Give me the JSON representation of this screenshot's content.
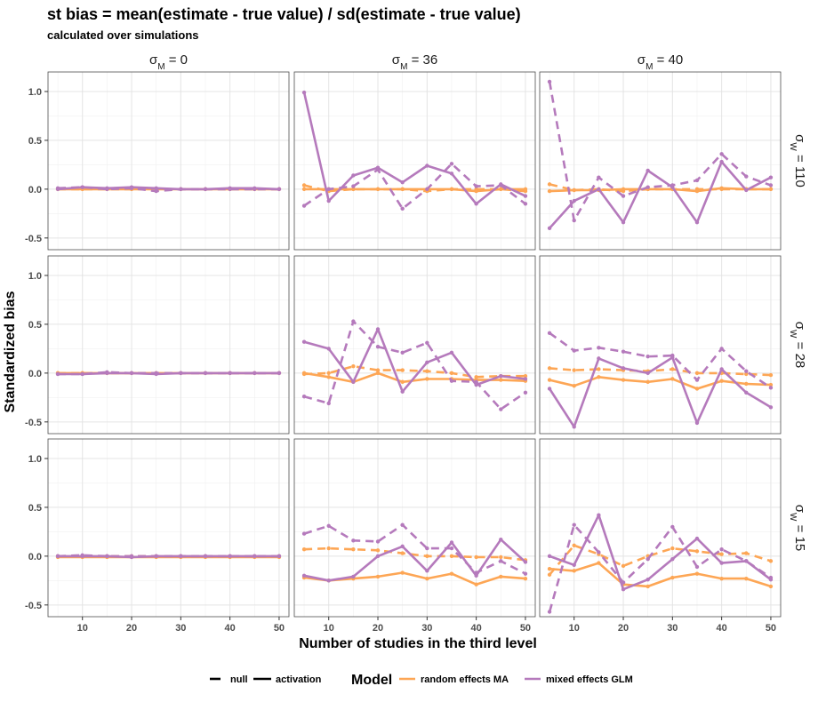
{
  "title": "st bias = mean(estimate - true value) / sd(estimate - true value)",
  "subtitle": "calculated over simulations",
  "chart_data": {
    "type": "line",
    "facet_columns": [
      {
        "prefix": "σ",
        "sub": "M",
        "suffix": " = 0"
      },
      {
        "prefix": "σ",
        "sub": "M",
        "suffix": " = 36"
      },
      {
        "prefix": "σ",
        "sub": "M",
        "suffix": " = 40"
      }
    ],
    "facet_rows": [
      {
        "prefix": "σ",
        "sub": "W",
        "suffix": " = 110"
      },
      {
        "prefix": "σ",
        "sub": "W",
        "suffix": " = 28"
      },
      {
        "prefix": "σ",
        "sub": "W",
        "suffix": " = 15"
      }
    ],
    "xlabel": "Number of studies in the third level",
    "ylabel": "Standardized bias",
    "x": [
      5,
      10,
      15,
      20,
      25,
      30,
      35,
      40,
      45,
      50
    ],
    "x_ticks": [
      10,
      20,
      30,
      40,
      50
    ],
    "xlim": [
      3,
      52
    ],
    "y_ticks": [
      -0.5,
      0.0,
      0.5,
      1.0
    ],
    "y_tick_labels": [
      "-0.5",
      "0.0",
      "0.5",
      "1.0"
    ],
    "ylim": [
      -0.62,
      1.2
    ],
    "grid": true,
    "legend": {
      "position": "bottom",
      "linetype_items": [
        {
          "label": "null",
          "style": "dashed"
        },
        {
          "label": "activation",
          "style": "solid"
        }
      ],
      "title": "Model",
      "color_items": [
        {
          "label": "random effects MA",
          "color": "#fda655"
        },
        {
          "label": "mixed effects GLM",
          "color": "#b57abc"
        }
      ]
    },
    "colors": {
      "random effects MA": "#fda655",
      "mixed effects GLM": "#b57abc"
    },
    "panels": [
      [
        {
          "series": [
            {
              "model": "random effects MA",
              "type": "null",
              "values": [
                0.0,
                0.0,
                0.0,
                0.0,
                0.0,
                0.0,
                0.0,
                0.0,
                0.0,
                0.0
              ]
            },
            {
              "model": "random effects MA",
              "type": "activation",
              "values": [
                0.0,
                0.0,
                0.0,
                0.0,
                0.0,
                0.0,
                0.0,
                0.0,
                0.0,
                0.0
              ]
            },
            {
              "model": "mixed effects GLM",
              "type": "null",
              "values": [
                0.01,
                0.02,
                0.0,
                0.01,
                -0.02,
                0.0,
                0.0,
                0.0,
                0.0,
                0.0
              ]
            },
            {
              "model": "mixed effects GLM",
              "type": "activation",
              "values": [
                0.0,
                0.02,
                0.01,
                0.02,
                0.01,
                0.0,
                0.0,
                0.01,
                0.01,
                0.0
              ]
            }
          ]
        },
        {
          "series": [
            {
              "model": "random effects MA",
              "type": "null",
              "values": [
                0.04,
                -0.02,
                0.0,
                0.0,
                0.0,
                -0.02,
                0.0,
                0.0,
                0.0,
                -0.02
              ]
            },
            {
              "model": "random effects MA",
              "type": "activation",
              "values": [
                0.0,
                0.0,
                0.0,
                0.0,
                0.0,
                0.0,
                0.0,
                -0.02,
                0.0,
                0.0
              ]
            },
            {
              "model": "mixed effects GLM",
              "type": "null",
              "values": [
                -0.17,
                0.0,
                0.03,
                0.2,
                -0.2,
                0.0,
                0.26,
                0.03,
                0.04,
                -0.15
              ]
            },
            {
              "model": "mixed effects GLM",
              "type": "activation",
              "values": [
                0.99,
                -0.12,
                0.14,
                0.22,
                0.07,
                0.24,
                0.16,
                -0.15,
                0.05,
                -0.07
              ]
            }
          ]
        },
        {
          "series": [
            {
              "model": "random effects MA",
              "type": "null",
              "values": [
                0.05,
                -0.01,
                0.0,
                -0.02,
                0.0,
                0.0,
                0.0,
                0.0,
                0.0,
                0.0
              ]
            },
            {
              "model": "random effects MA",
              "type": "activation",
              "values": [
                -0.02,
                -0.01,
                -0.01,
                0.0,
                0.0,
                0.0,
                -0.02,
                0.01,
                0.0,
                0.0
              ]
            },
            {
              "model": "mixed effects GLM",
              "type": "null",
              "values": [
                1.1,
                -0.32,
                0.12,
                -0.07,
                0.02,
                0.04,
                0.09,
                0.36,
                0.13,
                0.04
              ]
            },
            {
              "model": "mixed effects GLM",
              "type": "activation",
              "values": [
                -0.4,
                -0.12,
                0.0,
                -0.34,
                0.19,
                0.02,
                -0.34,
                0.28,
                -0.01,
                0.12
              ]
            }
          ]
        }
      ],
      [
        {
          "series": [
            {
              "model": "random effects MA",
              "type": "null",
              "values": [
                0.0,
                0.0,
                0.0,
                0.0,
                0.0,
                0.0,
                0.0,
                0.0,
                0.0,
                0.0
              ]
            },
            {
              "model": "random effects MA",
              "type": "activation",
              "values": [
                0.0,
                0.0,
                0.0,
                0.0,
                0.0,
                0.0,
                0.0,
                0.0,
                0.0,
                0.0
              ]
            },
            {
              "model": "mixed effects GLM",
              "type": "null",
              "values": [
                -0.01,
                -0.01,
                0.01,
                0.0,
                0.0,
                0.0,
                0.0,
                0.0,
                0.0,
                0.0
              ]
            },
            {
              "model": "mixed effects GLM",
              "type": "activation",
              "values": [
                -0.01,
                -0.01,
                0.0,
                0.0,
                -0.01,
                0.0,
                0.0,
                0.0,
                0.0,
                0.0
              ]
            }
          ]
        },
        {
          "series": [
            {
              "model": "random effects MA",
              "type": "null",
              "values": [
                -0.01,
                0.0,
                0.07,
                0.03,
                0.03,
                0.02,
                0.0,
                -0.04,
                -0.03,
                -0.03
              ]
            },
            {
              "model": "random effects MA",
              "type": "activation",
              "values": [
                0.0,
                -0.04,
                -0.09,
                0.0,
                -0.09,
                -0.06,
                -0.06,
                -0.07,
                -0.07,
                -0.08
              ]
            },
            {
              "model": "mixed effects GLM",
              "type": "null",
              "values": [
                -0.24,
                -0.31,
                0.53,
                0.27,
                0.21,
                0.31,
                -0.08,
                -0.09,
                -0.37,
                -0.2
              ]
            },
            {
              "model": "mixed effects GLM",
              "type": "activation",
              "values": [
                0.32,
                0.25,
                -0.09,
                0.45,
                -0.19,
                0.11,
                0.21,
                -0.12,
                -0.03,
                -0.06
              ]
            }
          ]
        },
        {
          "series": [
            {
              "model": "random effects MA",
              "type": "null",
              "values": [
                0.05,
                0.03,
                0.04,
                0.03,
                0.02,
                0.04,
                0.0,
                0.0,
                -0.01,
                -0.02
              ]
            },
            {
              "model": "random effects MA",
              "type": "activation",
              "values": [
                -0.07,
                -0.13,
                -0.04,
                -0.07,
                -0.09,
                -0.06,
                -0.16,
                -0.08,
                -0.11,
                -0.12
              ]
            },
            {
              "model": "mixed effects GLM",
              "type": "null",
              "values": [
                0.41,
                0.23,
                0.26,
                0.22,
                0.17,
                0.18,
                -0.07,
                0.25,
                0.02,
                -0.15
              ]
            },
            {
              "model": "mixed effects GLM",
              "type": "activation",
              "values": [
                -0.16,
                -0.55,
                0.15,
                0.05,
                0.0,
                0.16,
                -0.51,
                0.04,
                -0.2,
                -0.35
              ]
            }
          ]
        }
      ],
      [
        {
          "series": [
            {
              "model": "random effects MA",
              "type": "null",
              "values": [
                0.0,
                0.0,
                0.0,
                0.0,
                0.0,
                0.0,
                0.0,
                0.0,
                0.0,
                0.0
              ]
            },
            {
              "model": "random effects MA",
              "type": "activation",
              "values": [
                -0.01,
                -0.01,
                -0.01,
                -0.01,
                -0.01,
                -0.01,
                -0.01,
                -0.01,
                -0.01,
                -0.01
              ]
            },
            {
              "model": "mixed effects GLM",
              "type": "null",
              "values": [
                0.0,
                0.01,
                0.0,
                0.0,
                0.0,
                0.0,
                0.0,
                0.0,
                0.0,
                0.0
              ]
            },
            {
              "model": "mixed effects GLM",
              "type": "activation",
              "values": [
                0.0,
                0.0,
                0.0,
                -0.01,
                0.0,
                0.0,
                0.0,
                0.0,
                0.0,
                0.0
              ]
            }
          ]
        },
        {
          "series": [
            {
              "model": "random effects MA",
              "type": "null",
              "values": [
                0.07,
                0.08,
                0.07,
                0.06,
                0.03,
                0.0,
                0.0,
                -0.01,
                -0.01,
                -0.04
              ]
            },
            {
              "model": "random effects MA",
              "type": "activation",
              "values": [
                -0.22,
                -0.25,
                -0.23,
                -0.21,
                -0.17,
                -0.23,
                -0.18,
                -0.29,
                -0.21,
                -0.23
              ]
            },
            {
              "model": "mixed effects GLM",
              "type": "null",
              "values": [
                0.23,
                0.31,
                0.16,
                0.15,
                0.32,
                0.08,
                0.08,
                -0.17,
                -0.05,
                -0.18
              ]
            },
            {
              "model": "mixed effects GLM",
              "type": "activation",
              "values": [
                -0.2,
                -0.25,
                -0.21,
                0.0,
                0.1,
                -0.15,
                0.14,
                -0.2,
                0.17,
                -0.06
              ]
            }
          ]
        },
        {
          "series": [
            {
              "model": "random effects MA",
              "type": "null",
              "values": [
                -0.19,
                0.11,
                0.02,
                -0.1,
                0.0,
                0.08,
                0.05,
                0.02,
                0.03,
                -0.05
              ]
            },
            {
              "model": "random effects MA",
              "type": "activation",
              "values": [
                -0.13,
                -0.15,
                -0.07,
                -0.29,
                -0.31,
                -0.22,
                -0.18,
                -0.23,
                -0.23,
                -0.31
              ]
            },
            {
              "model": "mixed effects GLM",
              "type": "null",
              "values": [
                -0.57,
                0.32,
                0.04,
                -0.27,
                -0.03,
                0.3,
                -0.11,
                0.07,
                -0.05,
                -0.22
              ]
            },
            {
              "model": "mixed effects GLM",
              "type": "activation",
              "values": [
                0.0,
                -0.09,
                0.42,
                -0.34,
                -0.24,
                -0.03,
                0.18,
                -0.07,
                -0.05,
                -0.24
              ]
            }
          ]
        }
      ]
    ]
  }
}
